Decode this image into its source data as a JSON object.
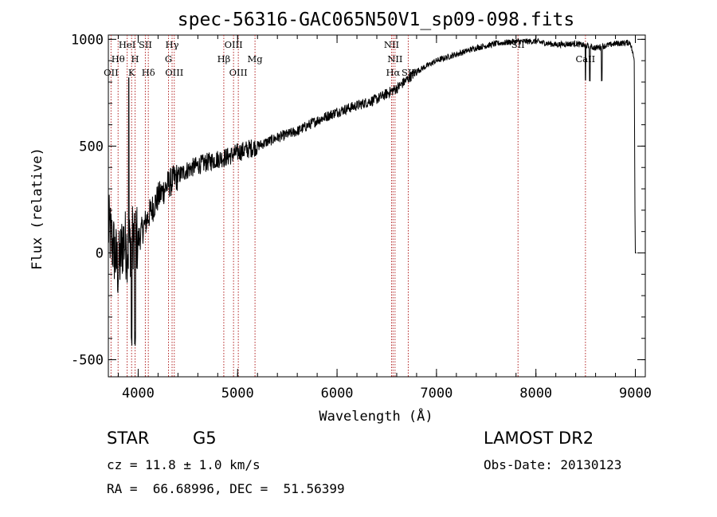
{
  "chart_data": {
    "type": "line",
    "title": "spec-56316-GAC065N50V1_sp09-098.fits",
    "xlabel": "Wavelength (Å)",
    "ylabel": "Flux (relative)",
    "xlim": [
      3700,
      9100
    ],
    "ylim": [
      -580,
      1020
    ],
    "xticks": [
      4000,
      5000,
      6000,
      7000,
      8000,
      9000
    ],
    "yticks": [
      -500,
      0,
      500,
      1000
    ],
    "grid": false,
    "spectrum_color": "#000000",
    "line_marker_color": "#b22222",
    "spectrum_anchors": [
      [
        3700,
        120
      ],
      [
        3760,
        10
      ],
      [
        3800,
        -80
      ],
      [
        3850,
        60
      ],
      [
        3900,
        20
      ],
      [
        3950,
        90
      ],
      [
        4000,
        60
      ],
      [
        4100,
        170
      ],
      [
        4200,
        260
      ],
      [
        4300,
        320
      ],
      [
        4400,
        360
      ],
      [
        4500,
        390
      ],
      [
        4600,
        410
      ],
      [
        4700,
        425
      ],
      [
        4800,
        440
      ],
      [
        4900,
        450
      ],
      [
        5000,
        470
      ],
      [
        5200,
        500
      ],
      [
        5400,
        540
      ],
      [
        5600,
        570
      ],
      [
        5800,
        620
      ],
      [
        6000,
        660
      ],
      [
        6200,
        690
      ],
      [
        6400,
        720
      ],
      [
        6600,
        770
      ],
      [
        6800,
        850
      ],
      [
        7000,
        900
      ],
      [
        7200,
        930
      ],
      [
        7400,
        960
      ],
      [
        7600,
        980
      ],
      [
        7800,
        990
      ],
      [
        8000,
        990
      ],
      [
        8200,
        975
      ],
      [
        8400,
        980
      ],
      [
        8600,
        960
      ],
      [
        8800,
        980
      ],
      [
        8950,
        985
      ],
      [
        8990,
        900
      ]
    ],
    "spectral_lines": [
      {
        "label": "OII",
        "x": 3727,
        "row": 3
      },
      {
        "label": "Hθ",
        "x": 3798,
        "row": 2
      },
      {
        "label": "HeI",
        "x": 3889,
        "row": 1
      },
      {
        "label": "K",
        "x": 3934,
        "row": 3
      },
      {
        "label": "H",
        "x": 3969,
        "row": 2
      },
      {
        "label": "SII",
        "x": 4072,
        "row": 1
      },
      {
        "label": "Hδ",
        "x": 4102,
        "row": 3
      },
      {
        "label": "Hγ",
        "x": 4341,
        "row": 1
      },
      {
        "label": "G",
        "x": 4305,
        "row": 2
      },
      {
        "label": "OIII",
        "x": 4363,
        "row": 3
      },
      {
        "label": "Hβ",
        "x": 4861,
        "row": 2
      },
      {
        "label": "OIII",
        "x": 4959,
        "row": 1
      },
      {
        "label": "OIII",
        "x": 5007,
        "row": 3
      },
      {
        "label": "Mg",
        "x": 5175,
        "row": 2
      },
      {
        "label": "NII",
        "x": 6548,
        "row": 1
      },
      {
        "label": "NII",
        "x": 6583,
        "row": 2
      },
      {
        "label": "Hα",
        "x": 6563,
        "row": 3
      },
      {
        "label": "SII",
        "x": 6716,
        "row": 3
      },
      {
        "label": "SII",
        "x": 7820,
        "row": 1
      },
      {
        "label": "CaII",
        "x": 8498,
        "row": 2
      }
    ]
  },
  "info": {
    "object_type": "STAR",
    "subclass": "G5",
    "survey": "LAMOST DR2",
    "cz": "cz = 11.8 ± 1.0 km/s",
    "obs_date": "Obs-Date: 20130123",
    "coords": "RA =  66.68996, DEC =  51.56399"
  }
}
